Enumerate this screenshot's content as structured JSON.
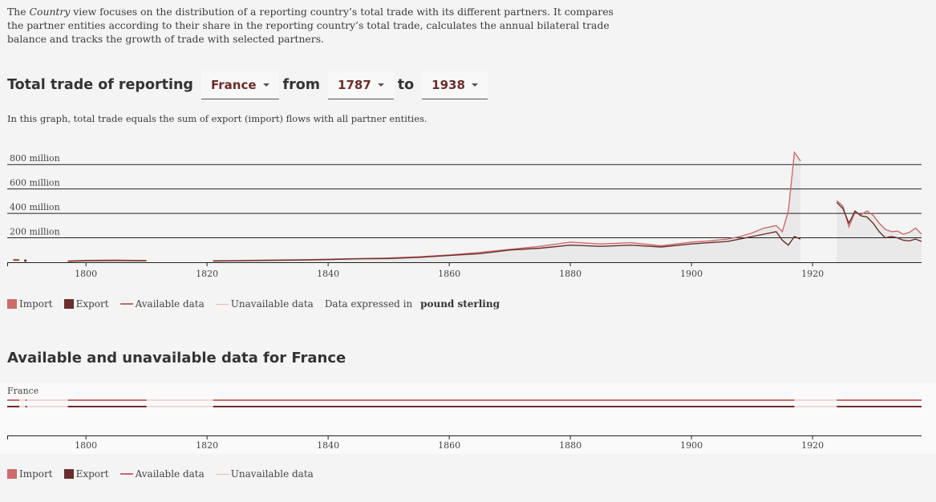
{
  "intro": {
    "pre": "The ",
    "em": "Country",
    "post": " view focuses on the distribution of a reporting country’s total trade with its different partners. It compares the partner entities according to their share in the reporting country’s total trade, calculates the annual bilateral trade balance and tracks the growth of trade with selected partners."
  },
  "title": {
    "label": "Total trade of reporting",
    "country": "France",
    "from_label": "from",
    "from_year": "1787",
    "to_label": "to",
    "to_year": "1938"
  },
  "note": "In this graph, total trade equals the sum of export (import) flows with all partner entities.",
  "colors": {
    "import": "#cd6b6b",
    "export": "#6b2d2d",
    "available": "#c26a6a",
    "unavailable": "#e6b8b8",
    "area": "#e9e9e9"
  },
  "legend1": {
    "import": "Import",
    "export": "Export",
    "available": "Available data",
    "unavailable": "Unavailable data",
    "expressed": "Data expressed in ",
    "unit": "pound sterling"
  },
  "availability": {
    "title": "Available and unavailable data for France",
    "row_label": "France",
    "import_available": [
      [
        1787,
        1789
      ],
      [
        1790,
        1790
      ],
      [
        1797,
        1810
      ],
      [
        1821,
        1917
      ],
      [
        1924,
        1938
      ]
    ],
    "export_available": [
      [
        1787,
        1789
      ],
      [
        1790,
        1790
      ],
      [
        1797,
        1810
      ],
      [
        1821,
        1917
      ],
      [
        1924,
        1938
      ]
    ]
  },
  "legend2": {
    "import": "Import",
    "export": "Export",
    "available": "Available data",
    "unavailable": "Unavailable data"
  },
  "chart_data": {
    "type": "line",
    "title": "",
    "xlabel": "",
    "ylabel": "",
    "xlim": [
      1787,
      1938
    ],
    "ylim": [
      0,
      900
    ],
    "y_unit": "million pound sterling",
    "yticks": [
      200,
      400,
      600,
      800
    ],
    "ytick_labels": [
      "200 million",
      "400 million",
      "600 million",
      "800 million"
    ],
    "xticks": [
      1800,
      1820,
      1840,
      1860,
      1880,
      1900,
      1920
    ],
    "grid": true,
    "series": [
      {
        "name": "Import",
        "color": "#cd6b6b",
        "segments": [
          [
            [
              1788,
              18
            ],
            [
              1789,
              17
            ]
          ],
          [
            [
              1790,
              14
            ]
          ],
          [
            [
              1797,
              10
            ],
            [
              1800,
              15
            ],
            [
              1805,
              18
            ],
            [
              1810,
              14
            ]
          ],
          [
            [
              1821,
              12
            ],
            [
              1825,
              14
            ],
            [
              1830,
              18
            ],
            [
              1835,
              20
            ],
            [
              1840,
              25
            ],
            [
              1845,
              30
            ],
            [
              1850,
              35
            ],
            [
              1855,
              45
            ],
            [
              1860,
              60
            ],
            [
              1865,
              80
            ],
            [
              1870,
              105
            ],
            [
              1875,
              130
            ],
            [
              1880,
              165
            ],
            [
              1885,
              150
            ],
            [
              1890,
              160
            ],
            [
              1895,
              135
            ],
            [
              1900,
              165
            ],
            [
              1903,
              175
            ],
            [
              1906,
              190
            ],
            [
              1908,
              210
            ],
            [
              1910,
              240
            ],
            [
              1912,
              280
            ],
            [
              1914,
              300
            ],
            [
              1915,
              250
            ],
            [
              1916,
              420
            ],
            [
              1917,
              900
            ],
            [
              1918,
              830
            ]
          ],
          [
            [
              1924,
              505
            ],
            [
              1925,
              460
            ],
            [
              1926,
              290
            ],
            [
              1927,
              410
            ],
            [
              1928,
              390
            ],
            [
              1929,
              420
            ],
            [
              1930,
              385
            ],
            [
              1931,
              320
            ],
            [
              1932,
              270
            ],
            [
              1933,
              250
            ],
            [
              1934,
              255
            ],
            [
              1935,
              230
            ],
            [
              1936,
              245
            ],
            [
              1937,
              280
            ],
            [
              1938,
              230
            ]
          ]
        ]
      },
      {
        "name": "Export",
        "color": "#6b2d2d",
        "segments": [
          [
            [
              1788,
              20
            ],
            [
              1789,
              19
            ]
          ],
          [
            [
              1790,
              12
            ]
          ],
          [
            [
              1797,
              8
            ],
            [
              1800,
              12
            ],
            [
              1805,
              14
            ],
            [
              1810,
              12
            ]
          ],
          [
            [
              1821,
              10
            ],
            [
              1825,
              12
            ],
            [
              1830,
              15
            ],
            [
              1835,
              18
            ],
            [
              1840,
              22
            ],
            [
              1845,
              28
            ],
            [
              1850,
              30
            ],
            [
              1855,
              40
            ],
            [
              1860,
              55
            ],
            [
              1865,
              70
            ],
            [
              1870,
              100
            ],
            [
              1875,
              115
            ],
            [
              1880,
              140
            ],
            [
              1885,
              130
            ],
            [
              1890,
              140
            ],
            [
              1895,
              125
            ],
            [
              1900,
              150
            ],
            [
              1903,
              160
            ],
            [
              1906,
              170
            ],
            [
              1908,
              190
            ],
            [
              1910,
              210
            ],
            [
              1912,
              230
            ],
            [
              1914,
              250
            ],
            [
              1915,
              180
            ],
            [
              1916,
              140
            ],
            [
              1917,
              210
            ],
            [
              1918,
              190
            ]
          ],
          [
            [
              1924,
              490
            ],
            [
              1925,
              440
            ],
            [
              1926,
              320
            ],
            [
              1927,
              420
            ],
            [
              1928,
              380
            ],
            [
              1929,
              370
            ],
            [
              1930,
              320
            ],
            [
              1931,
              250
            ],
            [
              1932,
              200
            ],
            [
              1933,
              210
            ],
            [
              1934,
              200
            ],
            [
              1935,
              180
            ],
            [
              1936,
              175
            ],
            [
              1937,
              190
            ],
            [
              1938,
              170
            ]
          ]
        ]
      }
    ]
  }
}
